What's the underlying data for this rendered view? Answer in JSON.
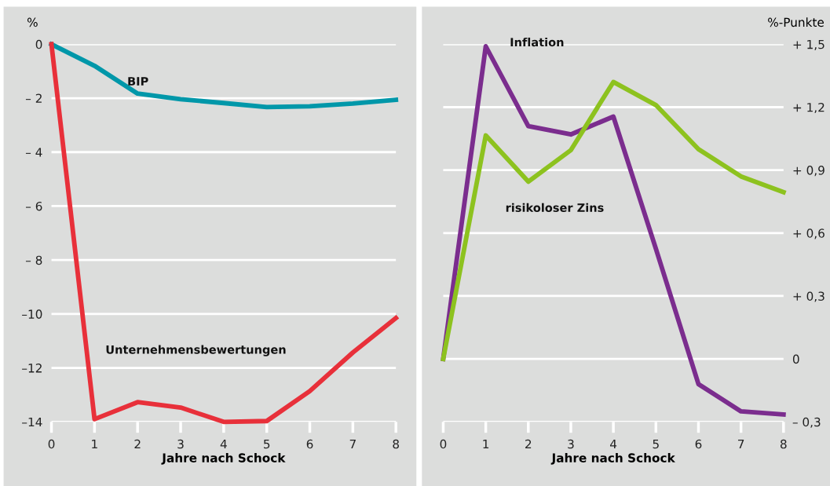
{
  "chart_data": [
    {
      "type": "line",
      "ylabel": "%",
      "xlabel": "Jahre nach Schock",
      "x": [
        0,
        1,
        2,
        3,
        4,
        5,
        6,
        7,
        8
      ],
      "series": [
        {
          "name": "BIP",
          "color": "#0097a9",
          "values": [
            0,
            -0.8,
            -1.83,
            -2.04,
            -2.18,
            -2.33,
            -2.3,
            -2.2,
            -2.06
          ]
        },
        {
          "name": "Unternehmensbewertungen",
          "color": "#e8303a",
          "values": [
            0,
            -13.9,
            -13.27,
            -13.47,
            -14.0,
            -13.97,
            -12.86,
            -11.43,
            -10.15
          ]
        }
      ],
      "xlim": [
        0,
        8
      ],
      "xticks": [
        0,
        1,
        2,
        3,
        4,
        5,
        6,
        7,
        8
      ],
      "ylim": [
        -14,
        0
      ],
      "yticks": [
        {
          "value": 0,
          "label": "0"
        },
        {
          "value": -2,
          "label": "– 2"
        },
        {
          "value": -4,
          "label": "– 4"
        },
        {
          "value": -6,
          "label": "– 6"
        },
        {
          "value": -8,
          "label": "– 8"
        },
        {
          "value": -10,
          "label": "–10"
        },
        {
          "value": -12,
          "label": "–12"
        },
        {
          "value": -14,
          "label": "–14"
        }
      ],
      "grid": "y",
      "legend": false,
      "marker": "none",
      "line_style": "solid"
    },
    {
      "type": "line",
      "ylabel": "%-Punkte",
      "xlabel": "Jahre nach Schock",
      "x": [
        0,
        1,
        2,
        3,
        4,
        5,
        6,
        7,
        8
      ],
      "series": [
        {
          "name": "Inflation",
          "color": "#7b2d8e",
          "values": [
            0,
            1.49,
            1.11,
            1.07,
            1.155,
            0.525,
            -0.12,
            -0.25,
            -0.265
          ]
        },
        {
          "name": "risikoloser Zins",
          "color": "#8dc21f",
          "values": [
            0,
            1.065,
            0.845,
            0.995,
            1.32,
            1.21,
            1.0,
            0.87,
            0.795
          ]
        }
      ],
      "xlim": [
        0,
        8
      ],
      "xticks": [
        0,
        1,
        2,
        3,
        4,
        5,
        6,
        7,
        8
      ],
      "ylim": [
        -0.3,
        1.5
      ],
      "yticks": [
        {
          "value": -0.3,
          "label": "– 0,3"
        },
        {
          "value": 0,
          "label": "0"
        },
        {
          "value": 0.3,
          "label": "+ 0,3"
        },
        {
          "value": 0.6,
          "label": "+ 0,6"
        },
        {
          "value": 0.9,
          "label": "+ 0,9"
        },
        {
          "value": 1.2,
          "label": "+ 1,2"
        },
        {
          "value": 1.5,
          "label": "+ 1,5"
        }
      ],
      "grid": "y",
      "legend": false,
      "marker": "none",
      "line_style": "solid"
    }
  ]
}
